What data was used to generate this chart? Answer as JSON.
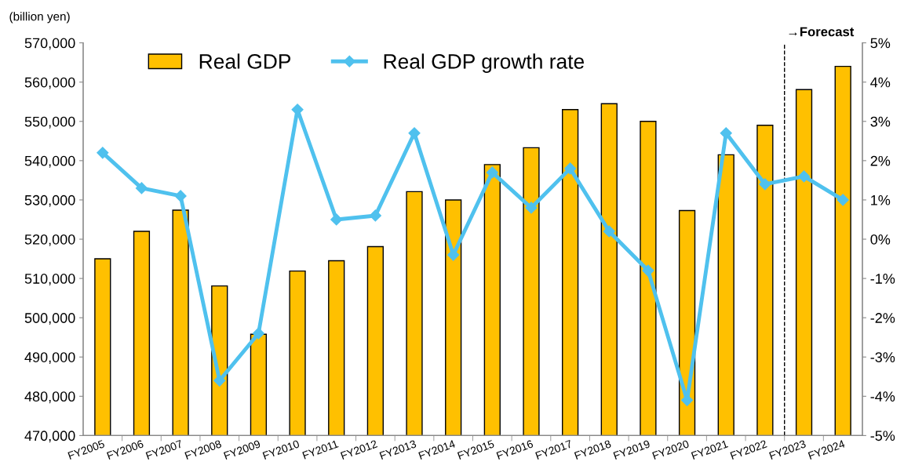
{
  "chart_data": {
    "type": "bar",
    "ylabel": "(billion yen)",
    "categories": [
      "FY2005",
      "FY2006",
      "FY2007",
      "FY2008",
      "FY2009",
      "FY2010",
      "FY2011",
      "FY2012",
      "FY2013",
      "FY2014",
      "FY2015",
      "FY2016",
      "FY2017",
      "FY2018",
      "FY2019",
      "FY2020",
      "FY2021",
      "FY2022",
      "FY2023",
      "FY2024"
    ],
    "series": [
      {
        "name": "Real GDP",
        "color": "#ffc000",
        "values": [
          515000,
          522000,
          527400,
          508100,
          495800,
          511900,
          514500,
          518100,
          532100,
          530000,
          539000,
          543300,
          553000,
          554500,
          550000,
          527300,
          541500,
          549000,
          558100,
          564000
        ]
      },
      {
        "name": "Real GDP growth rate",
        "type": "line",
        "axis": "y2",
        "color": "#4fc1ee",
        "values": [
          2.2,
          1.3,
          1.1,
          -3.6,
          -2.4,
          3.3,
          0.5,
          0.6,
          2.7,
          -0.4,
          1.7,
          0.8,
          1.8,
          0.2,
          -0.8,
          -4.1,
          2.7,
          1.4,
          1.6,
          1.0
        ]
      }
    ],
    "ylim": [
      470000,
      570000
    ],
    "yticks": [
      {
        "value": 470000,
        "label": "470,000"
      },
      {
        "value": 480000,
        "label": "480,000"
      },
      {
        "value": 490000,
        "label": "490,000"
      },
      {
        "value": 500000,
        "label": "500,000"
      },
      {
        "value": 510000,
        "label": "510,000"
      },
      {
        "value": 520000,
        "label": "520,000"
      },
      {
        "value": 530000,
        "label": "530,000"
      },
      {
        "value": 540000,
        "label": "540,000"
      },
      {
        "value": 550000,
        "label": "550,000"
      },
      {
        "value": 560000,
        "label": "560,000"
      },
      {
        "value": 570000,
        "label": "570,000"
      }
    ],
    "y2lim": [
      -5,
      5
    ],
    "y2ticks": [
      {
        "value": -5,
        "label": "-5%"
      },
      {
        "value": -4,
        "label": "-4%"
      },
      {
        "value": -3,
        "label": "-3%"
      },
      {
        "value": -2,
        "label": "-2%"
      },
      {
        "value": -1,
        "label": "-1%"
      },
      {
        "value": 0,
        "label": "0%"
      },
      {
        "value": 1,
        "label": "1%"
      },
      {
        "value": 2,
        "label": "2%"
      },
      {
        "value": 3,
        "label": "3%"
      },
      {
        "value": 4,
        "label": "4%"
      },
      {
        "value": 5,
        "label": "5%"
      }
    ],
    "annotations": [
      "→Forecast"
    ],
    "marker": "diamond",
    "legend": "top left",
    "grid": false
  }
}
